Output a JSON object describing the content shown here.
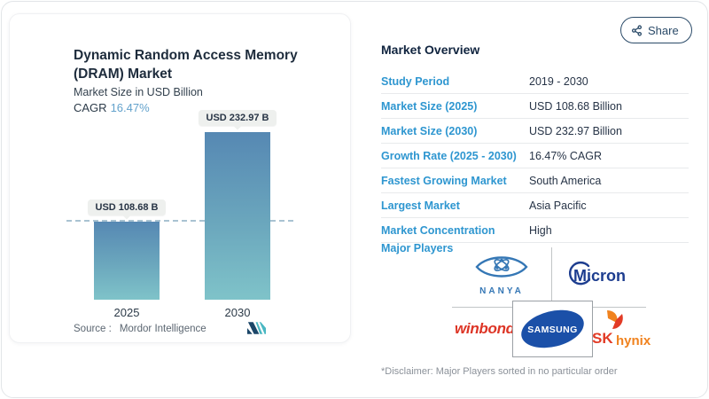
{
  "header": {
    "share_label": "Share"
  },
  "chart_panel": {
    "title_line1": "Dynamic Random Access Memory",
    "title_line2": "(DRAM) Market",
    "subtitle": "Market Size in USD Billion",
    "cagr_label": "CAGR",
    "cagr_value": "16.47%",
    "source_label": "Source :",
    "source_name": "Mordor Intelligence"
  },
  "chart_data": {
    "type": "bar",
    "title": "Dynamic Random Access Memory (DRAM) Market",
    "subtitle": "Market Size in USD Billion",
    "categories": [
      "2025",
      "2030"
    ],
    "values": [
      108.68,
      232.97
    ],
    "data_labels": [
      "USD 108.68 B",
      "USD 232.97 B"
    ],
    "cagr_pct": 16.47,
    "reference_line_value": 108.68,
    "ylim": [
      0,
      250
    ],
    "grid": false,
    "legend": "none",
    "bar_gradient": [
      "#5688b3",
      "#7fc3c9"
    ]
  },
  "overview": {
    "title": "Market Overview",
    "rows": [
      {
        "label": "Study Period",
        "value": "2019 - 2030"
      },
      {
        "label": "Market Size (2025)",
        "value": "USD 108.68 Billion"
      },
      {
        "label": "Market Size (2030)",
        "value": "USD 232.97 Billion"
      },
      {
        "label": "Growth Rate (2025 - 2030)",
        "value": "16.47% CAGR"
      },
      {
        "label": "Fastest Growing Market",
        "value": "South America"
      },
      {
        "label": "Largest Market",
        "value": "Asia Pacific"
      },
      {
        "label": "Market Concentration",
        "value": "High"
      }
    ],
    "major_players_label": "Major Players",
    "players": [
      {
        "name": "NANYA"
      },
      {
        "name": "Micron"
      },
      {
        "name": "winbond"
      },
      {
        "name": "SAMSUNG"
      },
      {
        "name": "SK hynix",
        "part1": "SK",
        "part2": "hynix"
      }
    ],
    "disclaimer": "*Disclaimer: Major Players sorted in no particular order"
  },
  "colors": {
    "accent_blue": "#2e96d0",
    "navy_text": "#1e2c3c",
    "cagr_blue": "#63a2cc",
    "bar_top": "#5688b3",
    "bar_bottom": "#7fc3c9",
    "samsung_blue": "#1b50a8",
    "micron_navy": "#1d3d8f",
    "winbond_red": "#dd3526",
    "sk_red": "#e23b26",
    "hynix_orange": "#f0821e",
    "nanya_blue": "#3577b5"
  }
}
